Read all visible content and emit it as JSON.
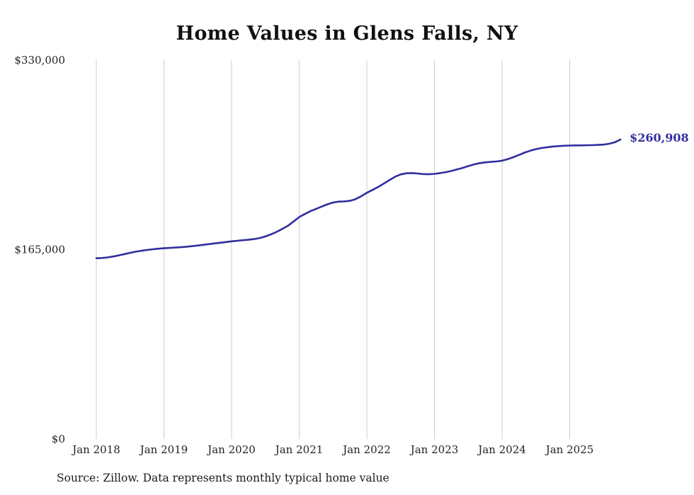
{
  "page": {
    "title": "Home Values in Glens Falls, NY",
    "source_note": "Source: Zillow. Data represents monthly typical home value"
  },
  "colors": {
    "line": "#312e9e",
    "grid": "#cccccc",
    "tick_text": "#222222",
    "end_label": "#312e9e"
  },
  "end_label": "$260,908",
  "chart_data": {
    "type": "line",
    "title": "Home Values in Glens Falls, NY",
    "x_start_month": "2018-01",
    "x_end_month": "2025-10",
    "x_interval": "monthly",
    "x_tick_labels": [
      "Jan 2018",
      "Jan 2019",
      "Jan 2020",
      "Jan 2021",
      "Jan 2022",
      "Jan 2023",
      "Jan 2024",
      "Jan 2025"
    ],
    "y_ticks": [
      0,
      165000,
      330000
    ],
    "y_tick_labels": [
      "$0",
      "$165,000",
      "$330,000"
    ],
    "ylim": [
      0,
      330000
    ],
    "grid": "vertical-only",
    "legend": "none",
    "last_value": 260908,
    "last_value_label": "$260,908",
    "series": [
      {
        "name": "Typical home value",
        "values": [
          157500,
          157700,
          158200,
          159000,
          160000,
          161100,
          162200,
          163200,
          164000,
          164700,
          165300,
          165800,
          166200,
          166500,
          166800,
          167100,
          167500,
          168000,
          168600,
          169200,
          169800,
          170400,
          171000,
          171600,
          172200,
          172700,
          173200,
          173600,
          174200,
          175100,
          176500,
          178300,
          180500,
          183000,
          185800,
          189500,
          193400,
          196000,
          198500,
          200500,
          202500,
          204500,
          206000,
          206800,
          207000,
          207500,
          209000,
          211500,
          214500,
          217000,
          219500,
          222500,
          225500,
          228500,
          230500,
          231500,
          231700,
          231300,
          230800,
          230600,
          231000,
          231700,
          232500,
          233500,
          234800,
          236200,
          237800,
          239200,
          240300,
          241000,
          241400,
          241800,
          242500,
          243800,
          245500,
          247500,
          249500,
          251200,
          252500,
          253500,
          254200,
          254800,
          255200,
          255500,
          255700,
          255800,
          255800,
          255900,
          256000,
          256200,
          256500,
          257200,
          258500,
          260908
        ]
      }
    ]
  }
}
